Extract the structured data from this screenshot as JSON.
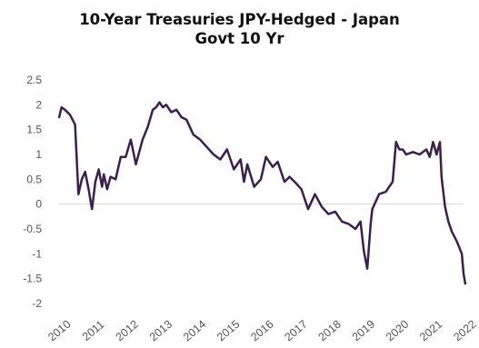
{
  "chart_data": {
    "type": "line",
    "title_lines": [
      "10-Year Treasuries JPY-Hedged - Japan",
      "Govt 10 Yr"
    ],
    "xlabel": "",
    "ylabel": "",
    "ylim": [
      -2,
      2.5
    ],
    "xlim": [
      2010,
      2022
    ],
    "y_ticks": [
      "2.5",
      "2",
      "1.5",
      "1",
      "0.5",
      "0",
      "-0.5",
      "-1",
      "-1.5",
      "-2"
    ],
    "y_tick_values": [
      2.5,
      2,
      1.5,
      1,
      0.5,
      0,
      -0.5,
      -1,
      -1.5,
      -2
    ],
    "x_ticks": [
      "2010",
      "2011",
      "2012",
      "2013",
      "2014",
      "2015",
      "2016",
      "2017",
      "2018",
      "2019",
      "2020",
      "2021",
      "2022"
    ],
    "x_tick_values": [
      2010,
      2011,
      2012,
      2013,
      2014,
      2015,
      2016,
      2017,
      2018,
      2019,
      2020,
      2021,
      2022
    ],
    "grid": false,
    "legend": "none",
    "line_color": "#3b1f4f",
    "series": [
      {
        "x": [
          2010.03,
          2010.1,
          2010.2,
          2010.35,
          2010.5,
          2010.6,
          2010.7,
          2010.8,
          2010.9,
          2011.0,
          2011.1,
          2011.2,
          2011.3,
          2011.35,
          2011.45,
          2011.55,
          2011.7,
          2011.85,
          2012.0,
          2012.15,
          2012.3,
          2012.5,
          2012.65,
          2012.8,
          2012.9,
          2013.0,
          2013.1,
          2013.2,
          2013.35,
          2013.5,
          2013.65,
          2013.8,
          2014.0,
          2014.2,
          2014.4,
          2014.6,
          2014.8,
          2015.0,
          2015.2,
          2015.4,
          2015.5,
          2015.6,
          2015.8,
          2016.0,
          2016.15,
          2016.35,
          2016.5,
          2016.7,
          2016.85,
          2017.0,
          2017.2,
          2017.4,
          2017.6,
          2017.8,
          2018.0,
          2018.2,
          2018.4,
          2018.6,
          2018.8,
          2018.95,
          2019.05,
          2019.15,
          2019.25,
          2019.3,
          2019.5,
          2019.7,
          2019.9,
          2020.0,
          2020.1,
          2020.2,
          2020.3,
          2020.5,
          2020.7,
          2020.9,
          2021.0,
          2021.1,
          2021.2,
          2021.3,
          2021.35,
          2021.45,
          2021.55,
          2021.65,
          2021.8,
          2021.95,
          2022.0,
          2022.05
        ],
        "y": [
          1.75,
          1.95,
          1.9,
          1.8,
          1.6,
          0.2,
          0.5,
          0.65,
          0.3,
          -0.1,
          0.45,
          0.7,
          0.35,
          0.6,
          0.3,
          0.55,
          0.5,
          0.95,
          0.95,
          1.3,
          0.8,
          1.3,
          1.55,
          1.9,
          1.95,
          2.05,
          1.95,
          2.0,
          1.85,
          1.9,
          1.75,
          1.7,
          1.4,
          1.3,
          1.15,
          1.0,
          0.9,
          1.1,
          0.7,
          0.9,
          0.45,
          0.8,
          0.35,
          0.5,
          0.95,
          0.75,
          0.85,
          0.45,
          0.55,
          0.45,
          0.3,
          -0.1,
          0.2,
          -0.05,
          -0.2,
          -0.15,
          -0.35,
          -0.4,
          -0.5,
          -0.35,
          -0.95,
          -1.3,
          -0.4,
          -0.1,
          0.2,
          0.25,
          0.45,
          1.25,
          1.1,
          1.1,
          1.0,
          1.05,
          1.0,
          1.1,
          0.95,
          1.25,
          1.0,
          1.25,
          0.55,
          -0.05,
          -0.35,
          -0.55,
          -0.75,
          -1.0,
          -1.4,
          -1.6
        ]
      }
    ]
  }
}
